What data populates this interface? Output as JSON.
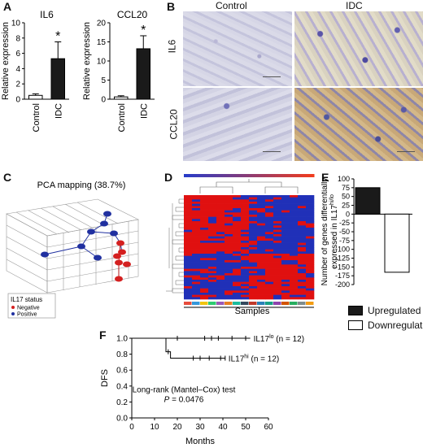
{
  "panels": {
    "a": "A",
    "b": "B",
    "c": "C",
    "d": "D",
    "e": "E",
    "f": "F"
  },
  "panel_b": {
    "columns": [
      "Control",
      "IDC"
    ],
    "rows": [
      "IL6",
      "CCL20"
    ]
  },
  "panel_c": {
    "title": "PCA mapping (38.7%)",
    "legend_title": "IL17 status",
    "legend_items": [
      "Negative",
      "Positive"
    ],
    "colors": {
      "negative": "#d42020",
      "positive": "#2030a0"
    }
  },
  "panel_d": {
    "xlabel": "Samples",
    "colors": {
      "high": "#e01010",
      "low": "#2030b8"
    }
  },
  "panel_e_legend": [
    "Upregulated",
    "Downregulated"
  ],
  "chart_data": [
    {
      "type": "bar",
      "title": "IL6",
      "ylabel": "Relative expression",
      "categories": [
        "Control",
        "IDC"
      ],
      "values": [
        0.5,
        5.3
      ],
      "errors": [
        0.2,
        2.2
      ],
      "ylim": [
        0,
        10
      ],
      "yticks": [
        0,
        2,
        4,
        6,
        8,
        10
      ],
      "significance": [
        "",
        "*"
      ],
      "colors": [
        "#ffffff",
        "#1a1a1a"
      ]
    },
    {
      "type": "bar",
      "title": "CCL20",
      "ylabel": "Relative expression",
      "categories": [
        "Control",
        "IDC"
      ],
      "values": [
        0.6,
        13.2
      ],
      "errors": [
        0.3,
        3.4
      ],
      "ylim": [
        0,
        20
      ],
      "yticks": [
        0,
        5,
        10,
        15,
        20
      ],
      "significance": [
        "",
        "*"
      ],
      "colors": [
        "#ffffff",
        "#1a1a1a"
      ]
    },
    {
      "type": "bar",
      "ylabel": "Number of genes differentially expressed in IL17hi/lo",
      "categories": [
        "Upregulated",
        "Downregulated"
      ],
      "values": [
        75,
        -165
      ],
      "ylim": [
        -200,
        100
      ],
      "yticks": [
        -200,
        -175,
        -150,
        -125,
        -100,
        -75,
        -50,
        -25,
        0,
        25,
        50,
        75,
        100
      ],
      "colors": [
        "#1a1a1a",
        "#ffffff"
      ]
    },
    {
      "type": "line",
      "ylabel": "DFS",
      "xlabel": "Months",
      "xlim": [
        0,
        60
      ],
      "ylim": [
        0.0,
        1.0
      ],
      "xticks": [
        0,
        10,
        20,
        30,
        40,
        50,
        60
      ],
      "yticks": [
        0.0,
        0.2,
        0.4,
        0.6,
        0.8,
        1.0
      ],
      "series": [
        {
          "name": "IL17lo (n = 12)",
          "x": [
            0,
            52
          ],
          "y": [
            1.0,
            1.0
          ],
          "censored_x": [
            20,
            32,
            35,
            38,
            44,
            50
          ]
        },
        {
          "name": "IL17hi (n = 12)",
          "x": [
            0,
            15,
            15,
            17,
            17,
            41
          ],
          "y": [
            1.0,
            1.0,
            0.83,
            0.83,
            0.75,
            0.75
          ],
          "censored_x": [
            16,
            27,
            30,
            34,
            39,
            41
          ]
        }
      ],
      "annotation": [
        "Long-rank (Mantel–Cox) test",
        "P = 0.0476"
      ]
    }
  ]
}
